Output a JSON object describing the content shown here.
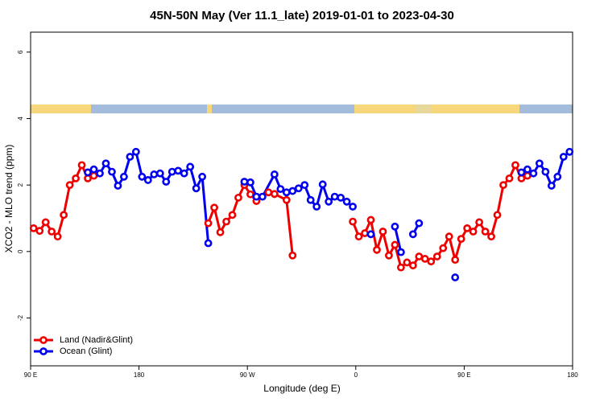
{
  "chart_data": {
    "type": "line",
    "title": "45N-50N May (Ver 11.1_late)   2019-01-01 to 2023-04-30",
    "x_label": "Longitude (deg E)",
    "y_label": "XCO2 - MLO trend (ppm)",
    "xlim": [
      90,
      540
    ],
    "xticks": [
      {
        "value": 90,
        "label": "90 E"
      },
      180,
      {
        "value": 270,
        "label": "90 W"
      },
      {
        "value": 360,
        "label": "0"
      },
      {
        "value": 450,
        "label": "90 E"
      },
      {
        "value": 540,
        "label": "180"
      }
    ],
    "ylim": [
      -3.44,
      6.6
    ],
    "yticks": [
      -2,
      0,
      2,
      4,
      6
    ],
    "legend": "bottom-left",
    "series": [
      {
        "name": "Land (Nadir&Glint)",
        "color": "#ee0000",
        "x": [
          92.5,
          97.5,
          102.5,
          107.5,
          112.5,
          117.5,
          122.5,
          127.5,
          132.5,
          137.5,
          142.5,
          147.5,
          237.5,
          242.5,
          247.5,
          252.5,
          257.5,
          262.5,
          267.5,
          272.5,
          277.5,
          287.5,
          292.5,
          302.5,
          307.5,
          312.5,
          357.5,
          362.5,
          367.5,
          372.5,
          377.5,
          382.5,
          387.5,
          392.5,
          397.5,
          402.5,
          407.5,
          412.5,
          417.5,
          422.5,
          427.5,
          432.5,
          437.5,
          442.5,
          447.5,
          452.5,
          457.5,
          462.5,
          467.5,
          472.5,
          477.5,
          482.5,
          487.5,
          492.5,
          497.5,
          502.5
        ],
        "values": [
          0.7,
          0.62,
          0.88,
          0.6,
          0.45,
          1.1,
          2.0,
          2.2,
          2.6,
          2.2,
          2.28,
          null,
          0.85,
          1.32,
          0.58,
          0.9,
          1.1,
          1.62,
          2.0,
          1.72,
          1.52,
          1.78,
          1.73,
          1.55,
          -0.12,
          null,
          0.9,
          0.45,
          0.55,
          0.95,
          0.05,
          0.6,
          -0.12,
          0.2,
          -0.48,
          -0.33,
          -0.42,
          -0.15,
          -0.22,
          -0.3,
          -0.15,
          0.1,
          0.45,
          -0.25,
          0.38,
          0.7,
          0.6,
          0.88,
          0.6,
          0.45,
          1.1,
          2.0,
          2.2,
          2.6,
          2.2,
          2.28
        ]
      },
      {
        "name": "Ocean (Glint)",
        "color": "#0000ee",
        "x": [
          137.5,
          142.5,
          147.5,
          152.5,
          157.5,
          162.5,
          167.5,
          172.5,
          177.5,
          182.5,
          187.5,
          192.5,
          197.5,
          202.5,
          207.5,
          212.5,
          217.5,
          222.5,
          227.5,
          232.5,
          237.5,
          242.5,
          267.5,
          272.5,
          277.5,
          282.5,
          292.5,
          297.5,
          302.5,
          307.5,
          312.5,
          317.5,
          322.5,
          327.5,
          332.5,
          337.5,
          342.5,
          347.5,
          352.5,
          357.5,
          362.5,
          372.5,
          377.5,
          392.5,
          397.5,
          402.5,
          407.5,
          412.5,
          417.5,
          442.5,
          447.5,
          497.5,
          502.5,
          507.5,
          512.5,
          517.5,
          522.5,
          527.5,
          532.5,
          537.5
        ],
        "values": [
          2.38,
          2.47,
          2.35,
          2.65,
          2.4,
          1.98,
          2.25,
          2.85,
          3.0,
          2.25,
          2.15,
          2.32,
          2.35,
          2.1,
          2.4,
          2.43,
          2.35,
          2.55,
          1.9,
          2.25,
          0.25,
          null,
          2.1,
          2.08,
          1.65,
          1.65,
          2.32,
          1.88,
          1.78,
          1.82,
          1.9,
          2.0,
          1.55,
          1.35,
          2.02,
          1.5,
          1.65,
          1.62,
          1.5,
          1.35,
          null,
          0.52,
          null,
          0.75,
          -0.02,
          null,
          0.52,
          0.85,
          null,
          -0.78,
          null,
          2.38,
          2.47,
          2.35,
          2.65,
          2.4,
          1.98,
          2.25,
          2.85,
          3.0
        ]
      }
    ]
  }
}
